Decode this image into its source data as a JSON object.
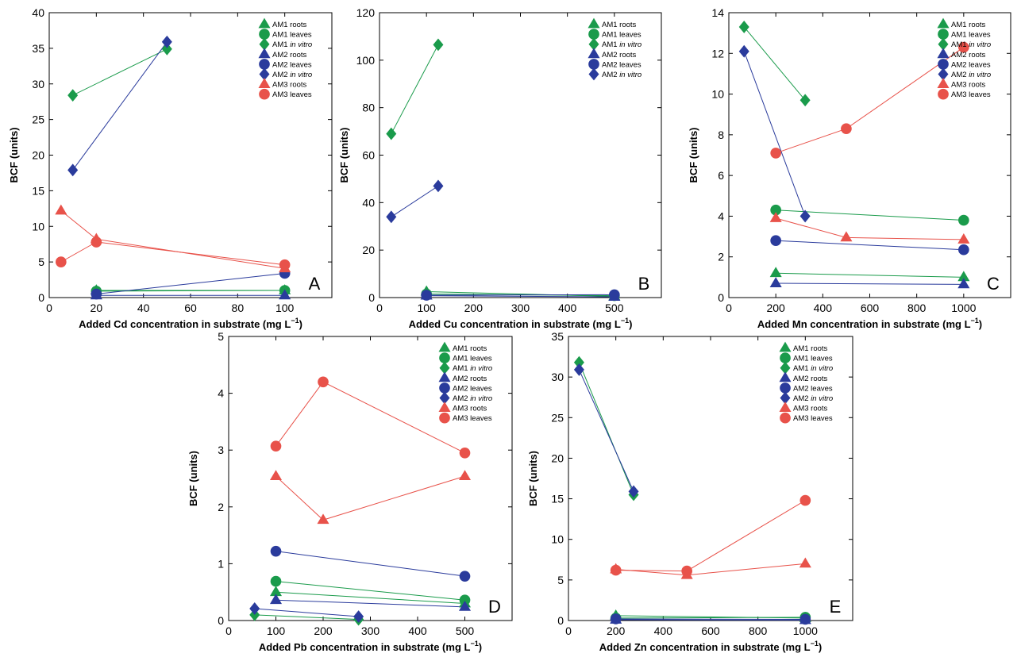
{
  "colors": {
    "AM1": "#1a9b4b",
    "AM2": "#2a3b9c",
    "AM3": "#e8524a"
  },
  "chart_data": [
    {
      "panel": "A",
      "type": "scatter",
      "title": "",
      "xlabel": "Added Cd concentration in substrate (mg L",
      "xlabel_suffix": "−1",
      "xlabel_close": ")",
      "ylabel": "BCF (units)",
      "xlim": [
        0,
        120
      ],
      "ylim": [
        0,
        40
      ],
      "xticks": [
        0,
        20,
        40,
        60,
        80,
        100
      ],
      "yticks": [
        0,
        5,
        10,
        15,
        20,
        25,
        30,
        35,
        40
      ],
      "legend_position": "top-right",
      "series": [
        {
          "name": "AM1 roots",
          "label": "AM1 roots",
          "group": "AM1",
          "marker": "triangle",
          "x": [
            20,
            100
          ],
          "y": [
            1.0,
            1.0
          ]
        },
        {
          "name": "AM1 leaves",
          "label": "AM1 leaves",
          "group": "AM1",
          "marker": "circle",
          "x": [
            20,
            100
          ],
          "y": [
            0.9,
            1.0
          ]
        },
        {
          "name": "AM1 in vitro",
          "label": "AM1 ",
          "label_italic": "in vitro",
          "group": "AM1",
          "marker": "diamond",
          "x": [
            10,
            50
          ],
          "y": [
            28.4,
            34.9
          ]
        },
        {
          "name": "AM2 roots",
          "label": "AM2 roots",
          "group": "AM2",
          "marker": "triangle",
          "x": [
            20,
            100
          ],
          "y": [
            0.3,
            0.3
          ]
        },
        {
          "name": "AM2 leaves",
          "label": "AM2 leaves",
          "group": "AM2",
          "marker": "circle",
          "x": [
            20,
            100
          ],
          "y": [
            0.5,
            3.4
          ]
        },
        {
          "name": "AM2 in vitro",
          "label": "AM2 ",
          "label_italic": "in vitro",
          "group": "AM2",
          "marker": "diamond",
          "x": [
            10,
            50
          ],
          "y": [
            17.9,
            35.9
          ]
        },
        {
          "name": "AM3 roots",
          "label": "AM3 roots",
          "group": "AM3",
          "marker": "triangle",
          "x": [
            5,
            20,
            100
          ],
          "y": [
            12.2,
            8.2,
            4.1
          ]
        },
        {
          "name": "AM3 leaves",
          "label": "AM3 leaves",
          "group": "AM3",
          "marker": "circle",
          "x": [
            5,
            20,
            100
          ],
          "y": [
            5.0,
            7.8,
            4.6
          ]
        }
      ]
    },
    {
      "panel": "B",
      "type": "scatter",
      "title": "",
      "xlabel": "Added Cu concentration in substrate (mg L",
      "xlabel_suffix": "−1",
      "xlabel_close": ")",
      "ylabel": "BCF (units)",
      "xlim": [
        0,
        600
      ],
      "ylim": [
        0,
        120
      ],
      "xticks": [
        0,
        100,
        200,
        300,
        400,
        500
      ],
      "yticks": [
        0,
        20,
        40,
        60,
        80,
        100,
        120
      ],
      "legend_position": "top-right",
      "series": [
        {
          "name": "AM1 roots",
          "label": "AM1 roots",
          "group": "AM1",
          "marker": "triangle",
          "x": [
            100,
            500
          ],
          "y": [
            2.5,
            0.5
          ]
        },
        {
          "name": "AM1 leaves",
          "label": "AM1 leaves",
          "group": "AM1",
          "marker": "circle",
          "x": [
            100,
            500
          ],
          "y": [
            1.5,
            0.8
          ]
        },
        {
          "name": "AM1 in vitro",
          "label": "AM1 ",
          "label_italic": "in vitro",
          "group": "AM1",
          "marker": "diamond",
          "x": [
            25,
            125
          ],
          "y": [
            69,
            106.5
          ]
        },
        {
          "name": "AM2 roots",
          "label": "AM2 roots",
          "group": "AM2",
          "marker": "triangle",
          "x": [
            100,
            500
          ],
          "y": [
            0.8,
            0.3
          ]
        },
        {
          "name": "AM2 leaves",
          "label": "AM2 leaves",
          "group": "AM2",
          "marker": "circle",
          "x": [
            100,
            500
          ],
          "y": [
            1.0,
            1.2
          ]
        },
        {
          "name": "AM2 in vitro",
          "label": "AM2 ",
          "label_italic": "in vitro",
          "group": "AM2",
          "marker": "diamond",
          "x": [
            25,
            125
          ],
          "y": [
            34,
            47
          ]
        }
      ]
    },
    {
      "panel": "C",
      "type": "scatter",
      "title": "",
      "xlabel": "Added Mn concentration in substrate (mg L",
      "xlabel_suffix": "−1",
      "xlabel_close": ")",
      "ylabel": "BCF (units)",
      "xlim": [
        0,
        1200
      ],
      "ylim": [
        0,
        14
      ],
      "xticks": [
        0,
        200,
        400,
        600,
        800,
        1000
      ],
      "yticks": [
        0,
        2,
        4,
        6,
        8,
        10,
        12,
        14
      ],
      "legend_position": "top-right",
      "series": [
        {
          "name": "AM1 roots",
          "label": "AM1 roots",
          "group": "AM1",
          "marker": "triangle",
          "x": [
            200,
            1000
          ],
          "y": [
            1.2,
            1.0
          ]
        },
        {
          "name": "AM1 leaves",
          "label": "AM1 leaves",
          "group": "AM1",
          "marker": "circle",
          "x": [
            200,
            1000
          ],
          "y": [
            4.3,
            3.8
          ]
        },
        {
          "name": "AM1 in vitro",
          "label": "AM1 ",
          "label_italic": "in vitro",
          "group": "AM1",
          "marker": "diamond",
          "x": [
            65,
            325
          ],
          "y": [
            13.3,
            9.7
          ]
        },
        {
          "name": "AM2 roots",
          "label": "AM2 roots",
          "group": "AM2",
          "marker": "triangle",
          "x": [
            200,
            1000
          ],
          "y": [
            0.7,
            0.65
          ]
        },
        {
          "name": "AM2 leaves",
          "label": "AM2 leaves",
          "group": "AM2",
          "marker": "circle",
          "x": [
            200,
            1000
          ],
          "y": [
            2.8,
            2.35
          ]
        },
        {
          "name": "AM2 in vitro",
          "label": "AM2 ",
          "label_italic": "in vitro",
          "group": "AM2",
          "marker": "diamond",
          "x": [
            65,
            325
          ],
          "y": [
            12.1,
            4.0
          ]
        },
        {
          "name": "AM3 roots",
          "label": "AM3 roots",
          "group": "AM3",
          "marker": "triangle",
          "x": [
            200,
            500,
            1000
          ],
          "y": [
            3.9,
            2.95,
            2.85
          ]
        },
        {
          "name": "AM3 leaves",
          "label": "AM3 leaves",
          "group": "AM3",
          "marker": "circle",
          "x": [
            200,
            500,
            1000
          ],
          "y": [
            7.1,
            8.3,
            12.3
          ]
        }
      ]
    },
    {
      "panel": "D",
      "type": "scatter",
      "title": "",
      "xlabel": "Added Pb concentration in substrate (mg L",
      "xlabel_suffix": "−1",
      "xlabel_close": ")",
      "ylabel": "BCF (units)",
      "xlim": [
        0,
        600
      ],
      "ylim": [
        0,
        5
      ],
      "xticks": [
        0,
        100,
        200,
        300,
        400,
        500
      ],
      "yticks": [
        0,
        1,
        2,
        3,
        4,
        5
      ],
      "legend_position": "top-right",
      "series": [
        {
          "name": "AM1 roots",
          "label": "AM1 roots",
          "group": "AM1",
          "marker": "triangle",
          "x": [
            100,
            500
          ],
          "y": [
            0.5,
            0.3
          ]
        },
        {
          "name": "AM1 leaves",
          "label": "AM1 leaves",
          "group": "AM1",
          "marker": "circle",
          "x": [
            100,
            500
          ],
          "y": [
            0.69,
            0.36
          ]
        },
        {
          "name": "AM1 in vitro",
          "label": "AM1 ",
          "label_italic": "in vitro",
          "group": "AM1",
          "marker": "diamond",
          "x": [
            55,
            275
          ],
          "y": [
            0.1,
            0.02
          ]
        },
        {
          "name": "AM2 roots",
          "label": "AM2 roots",
          "group": "AM2",
          "marker": "triangle",
          "x": [
            100,
            500
          ],
          "y": [
            0.36,
            0.24
          ]
        },
        {
          "name": "AM2 leaves",
          "label": "AM2 leaves",
          "group": "AM2",
          "marker": "circle",
          "x": [
            100,
            500
          ],
          "y": [
            1.22,
            0.78
          ]
        },
        {
          "name": "AM2 in vitro",
          "label": "AM2 ",
          "label_italic": "in vitro",
          "group": "AM2",
          "marker": "diamond",
          "x": [
            55,
            275
          ],
          "y": [
            0.21,
            0.07
          ]
        },
        {
          "name": "AM3 roots",
          "label": "AM3 roots",
          "group": "AM3",
          "marker": "triangle",
          "x": [
            100,
            200,
            500
          ],
          "y": [
            2.54,
            1.77,
            2.54
          ]
        },
        {
          "name": "AM3 leaves",
          "label": "AM3 leaves",
          "group": "AM3",
          "marker": "circle",
          "x": [
            100,
            200,
            500
          ],
          "y": [
            3.07,
            4.2,
            2.95
          ]
        }
      ]
    },
    {
      "panel": "E",
      "type": "scatter",
      "title": "",
      "xlabel": "Added Zn concentration in substrate (mg L",
      "xlabel_suffix": "−1",
      "xlabel_close": ")",
      "ylabel": "BCF (units)",
      "xlim": [
        0,
        1200
      ],
      "ylim": [
        0,
        35
      ],
      "xticks": [
        0,
        200,
        400,
        600,
        800,
        1000
      ],
      "yticks": [
        0,
        5,
        10,
        15,
        20,
        25,
        30,
        35
      ],
      "legend_position": "top-right",
      "series": [
        {
          "name": "AM1 roots",
          "label": "AM1 roots",
          "group": "AM1",
          "marker": "triangle",
          "x": [
            200,
            1000
          ],
          "y": [
            0.6,
            0.3
          ]
        },
        {
          "name": "AM1 leaves",
          "label": "AM1 leaves",
          "group": "AM1",
          "marker": "circle",
          "x": [
            200,
            1000
          ],
          "y": [
            0.3,
            0.4
          ]
        },
        {
          "name": "AM1 in vitro",
          "label": "AM1 ",
          "label_italic": "in vitro",
          "group": "AM1",
          "marker": "diamond",
          "x": [
            45,
            275
          ],
          "y": [
            31.8,
            15.5
          ]
        },
        {
          "name": "AM2 roots",
          "label": "AM2 roots",
          "group": "AM2",
          "marker": "triangle",
          "x": [
            200,
            1000
          ],
          "y": [
            0.1,
            0.05
          ]
        },
        {
          "name": "AM2 leaves",
          "label": "AM2 leaves",
          "group": "AM2",
          "marker": "circle",
          "x": [
            200,
            1000
          ],
          "y": [
            0.2,
            0.15
          ]
        },
        {
          "name": "AM2 in vitro",
          "label": "AM2 ",
          "label_italic": "in vitro",
          "group": "AM2",
          "marker": "diamond",
          "x": [
            45,
            275
          ],
          "y": [
            30.9,
            15.9
          ]
        },
        {
          "name": "AM3 roots",
          "label": "AM3 roots",
          "group": "AM3",
          "marker": "triangle",
          "x": [
            200,
            500,
            1000
          ],
          "y": [
            6.3,
            5.6,
            7.0
          ]
        },
        {
          "name": "AM3 leaves",
          "label": "AM3 leaves",
          "group": "AM3",
          "marker": "circle",
          "x": [
            200,
            500,
            1000
          ],
          "y": [
            6.2,
            6.1,
            14.8
          ]
        }
      ]
    }
  ]
}
